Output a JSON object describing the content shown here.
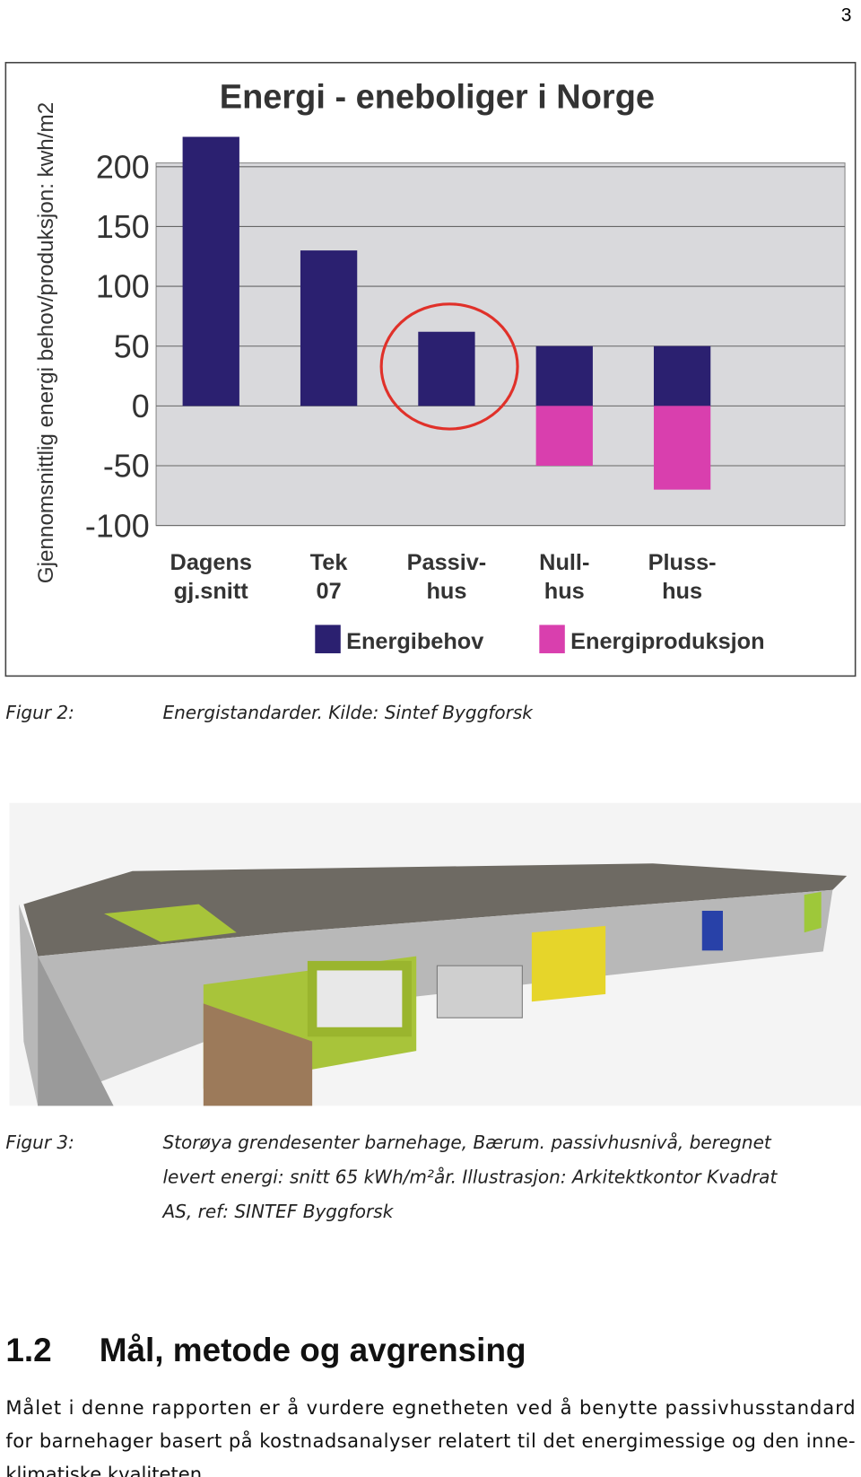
{
  "page_number": "3",
  "chart_data": {
    "type": "bar",
    "title": "Energi - eneboliger i Norge",
    "y_label": "Gjennomsnittlig energi behov/produksjon: kwh/m2",
    "categories": [
      [
        "Dagens",
        "gj.snitt"
      ],
      [
        "Tek",
        "07"
      ],
      [
        "Passiv-",
        "hus"
      ],
      [
        "Null-",
        "hus"
      ],
      [
        "Pluss-",
        "hus"
      ]
    ],
    "series": [
      {
        "name": "Energibehov",
        "color": "#2b2070",
        "values": [
          225,
          130,
          62,
          50,
          50
        ]
      },
      {
        "name": "Energiproduksjon",
        "color": "#d93fae",
        "values": [
          null,
          null,
          null,
          -50,
          -70
        ]
      }
    ],
    "ylim": [
      -100,
      200
    ],
    "yticks": [
      -100,
      -50,
      0,
      50,
      100,
      150,
      200
    ],
    "grid": true,
    "legend": "bottom"
  },
  "figure2": {
    "label": "Figur 2:",
    "caption": "Energistandarder. Kilde: Sintef Byggforsk"
  },
  "figure3": {
    "label": "Figur 3:",
    "caption_lines": [
      "Storøya grendesenter barnehage, Bærum. passivhusnivå, beregnet",
      "levert energi: snitt 65 kWh/m²år. Illustrasjon: Arkitektkontor Kvadrat",
      "AS, ref: SINTEF Byggforsk"
    ]
  },
  "section": {
    "number": "1.2",
    "title": "Mål, metode og avgrensing"
  },
  "body_lines": [
    "Målet i denne rapporten er å vurdere egnetheten ved å benytte passivhusstandard",
    "for barnehager basert på kostnadsanalyser relatert til det energimessige og den inne-",
    "klimatiske kvaliteten."
  ]
}
